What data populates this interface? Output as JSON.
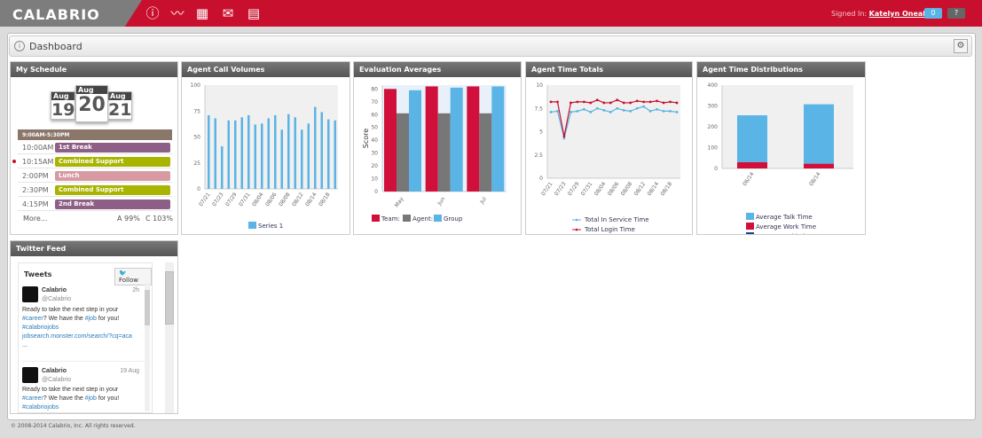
{
  "header": {
    "logo": "CALABRIO",
    "signed_in_label": "Signed In:",
    "user": "Katelyn Oneal",
    "notifications": "0",
    "help": "?",
    "nav_icons": [
      "info-icon",
      "activity-icon",
      "calendar-icon",
      "mail-icon",
      "report-icon"
    ]
  },
  "dashboard": {
    "title": "Dashboard"
  },
  "schedule": {
    "title": "My Schedule",
    "days": [
      {
        "month": "Aug",
        "day": "19"
      },
      {
        "month": "Aug",
        "day": "20"
      },
      {
        "month": "Aug",
        "day": "21"
      }
    ],
    "shift": "9:00AM-5:30PM",
    "items": [
      {
        "time": "10:00AM",
        "label": "1st Break",
        "color": "#8e5f86"
      },
      {
        "time": "10:15AM",
        "label": "Combined Support",
        "color": "#a8b400",
        "current": true
      },
      {
        "time": "2:00PM",
        "label": "Lunch",
        "color": "#d89aa2"
      },
      {
        "time": "2:30PM",
        "label": "Combined Support",
        "color": "#a8b400"
      },
      {
        "time": "4:15PM",
        "label": "2nd Break",
        "color": "#8e5f86"
      }
    ],
    "more": "More...",
    "adherence": "A 99%",
    "conformance": "C 103%"
  },
  "chart_data": [
    {
      "id": "call_volumes",
      "title": "Agent Call Volumes",
      "type": "bar",
      "ylim": [
        0,
        100
      ],
      "yticks": [
        0,
        25,
        50,
        75,
        100
      ],
      "xticks": [
        "07/21",
        "07/23",
        "07/29",
        "07/31",
        "08/04",
        "08/06",
        "08/08",
        "08/12",
        "08/14",
        "08/18"
      ],
      "series": [
        {
          "name": "Series 1",
          "color": "#5ab4e5",
          "values": [
            71,
            68,
            41,
            66,
            66,
            69,
            71,
            62,
            63,
            68,
            71,
            57,
            72,
            69,
            57,
            63,
            79,
            74,
            67,
            66
          ]
        }
      ],
      "legend": "bottom"
    },
    {
      "id": "evaluation",
      "title": "Evaluation Averages",
      "type": "bar",
      "ylabel": "Score",
      "ylim": [
        0,
        83
      ],
      "yticks": [
        0,
        10,
        20,
        30,
        40,
        50,
        60,
        70,
        80
      ],
      "categories": [
        "May",
        "Jun",
        "Jul"
      ],
      "series": [
        {
          "name": "Team:",
          "color": "#d0103a",
          "values": [
            80,
            82,
            82
          ]
        },
        {
          "name": "Agent:",
          "color": "#777777",
          "values": [
            61,
            61,
            61
          ]
        },
        {
          "name": "Group",
          "color": "#5ab4e5",
          "values": [
            79,
            81,
            82
          ]
        }
      ],
      "legend": "bottom"
    },
    {
      "id": "time_totals",
      "title": "Agent Time Totals",
      "type": "line",
      "ylim": [
        0,
        10
      ],
      "yticks": [
        "0",
        "2.5",
        "5",
        "7.5",
        "10"
      ],
      "xticks": [
        "07/21",
        "07/23",
        "07/29",
        "07/31",
        "08/04",
        "08/06",
        "08/08",
        "08/12",
        "08/14",
        "08/18"
      ],
      "series": [
        {
          "name": "Total In Service Time",
          "color": "#5ab4e5",
          "values": [
            7.1,
            7.2,
            4.3,
            7.1,
            7.2,
            7.4,
            7.1,
            7.5,
            7.3,
            7.1,
            7.5,
            7.3,
            7.2,
            7.5,
            7.7,
            7.2,
            7.4,
            7.2,
            7.2,
            7.1
          ]
        },
        {
          "name": "Total Login Time",
          "color": "#c8102e",
          "values": [
            8.2,
            8.2,
            4.5,
            8.1,
            8.2,
            8.2,
            8.1,
            8.4,
            8.1,
            8.1,
            8.4,
            8.1,
            8.1,
            8.3,
            8.2,
            8.2,
            8.3,
            8.1,
            8.2,
            8.1
          ]
        }
      ],
      "legend": "bottom"
    },
    {
      "id": "time_dist",
      "title": "Agent Time Distributions",
      "type": "bar",
      "stacked": true,
      "ylim": [
        0,
        400
      ],
      "yticks": [
        0,
        100,
        200,
        300,
        400
      ],
      "categories": [
        "06/14",
        "08/14"
      ],
      "series": [
        {
          "name": "Average Talk Time",
          "color": "#5ab4e5",
          "values": [
            225,
            285
          ]
        },
        {
          "name": "Average Work Time",
          "color": "#d0103a",
          "values": [
            30,
            23
          ]
        },
        {
          "name": "Average Hold Time",
          "color": "#1f3f8f",
          "values": [
            0,
            0
          ]
        }
      ],
      "legend": "bottom"
    }
  ],
  "twitter": {
    "title": "Twitter Feed",
    "tweets_label": "Tweets",
    "follow": "Follow",
    "tweets": [
      {
        "name": "Calabrio",
        "handle": "@Calabrio",
        "time": "2h",
        "text": "Ready to take the next step in your",
        "tag1": "#career",
        "mid": "? We have the ",
        "tag2": "#job",
        "end": " for you!",
        "tag3": "#calabriojobs",
        "link": "jobsearch.monster.com/search/?cq=aca",
        "ellipsis": "..."
      },
      {
        "name": "Calabrio",
        "handle": "@Calabrio",
        "time": "19 Aug",
        "text": "Ready to take the next step in your",
        "tag1": "#career",
        "mid": "? We have the ",
        "tag2": "#job",
        "end": " for you!",
        "tag3": "#calabriojobs"
      }
    ]
  },
  "footer": "© 2008-2014 Calabrio, Inc. All rights reserved."
}
